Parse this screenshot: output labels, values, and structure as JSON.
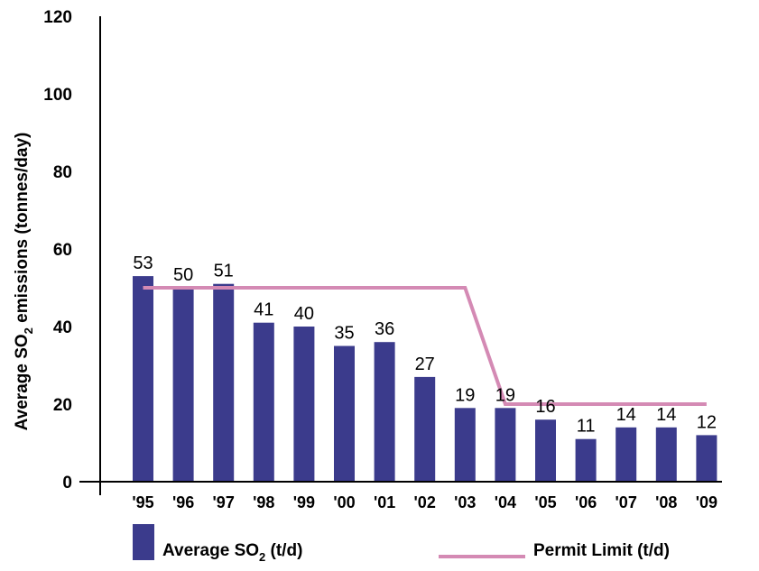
{
  "chart_data": {
    "type": "bar",
    "categories": [
      "'95",
      "'96",
      "'97",
      "'98",
      "'99",
      "'00",
      "'01",
      "'02",
      "'03",
      "'04",
      "'05",
      "'06",
      "'07",
      "'08",
      "'09"
    ],
    "series": [
      {
        "name": "Average SO2 (t/d)",
        "kind": "bar",
        "color": "#3b3b8c",
        "values": [
          53,
          50,
          51,
          41,
          40,
          35,
          36,
          27,
          19,
          19,
          16,
          11,
          14,
          14,
          12
        ],
        "labels": [
          "53",
          "50",
          "51",
          "41",
          "40",
          "35",
          "36",
          "27",
          "19",
          "19",
          "16",
          "11",
          "14",
          "14",
          "12"
        ]
      },
      {
        "name": "Permit Limit (t/d)",
        "kind": "line",
        "color": "#d48ab4",
        "values": [
          50,
          50,
          50,
          50,
          50,
          50,
          50,
          50,
          50,
          20,
          20,
          20,
          20,
          20,
          20
        ]
      }
    ],
    "ylim": [
      0,
      120
    ],
    "yticks": [
      "0",
      "20",
      "40",
      "60",
      "80",
      "100",
      "120"
    ],
    "ytick_values": [
      0,
      20,
      40,
      60,
      80,
      100,
      120
    ],
    "ylabel": {
      "pre": "Average SO",
      "sub": "2",
      "post": " emissions (tonnes/day)"
    },
    "xlabel": "",
    "grid": false,
    "legend": {
      "position": "bottom",
      "bar": {
        "pre": "Average SO",
        "sub": "2",
        "post": " (t/d)"
      },
      "line": {
        "text": "Permit Limit (t/d)"
      }
    }
  }
}
